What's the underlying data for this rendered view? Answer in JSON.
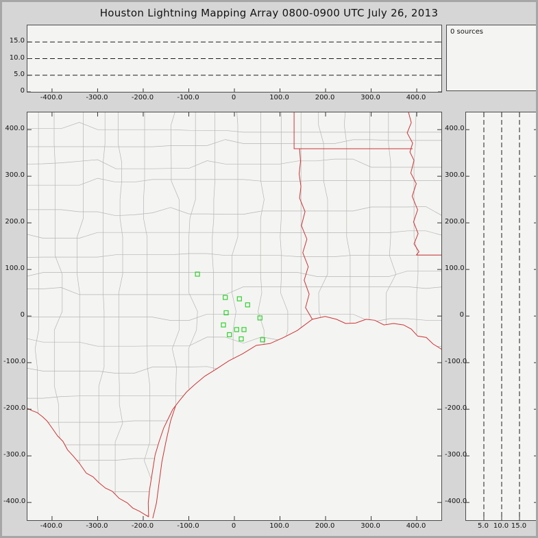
{
  "title": "Houston Lightning Mapping Array   0800-0900 UTC  July 26, 2013",
  "counts_label": "0 sources",
  "sources_count": 0,
  "colors": {
    "state_border": "#cc3333",
    "county_border": "#b5b5b5",
    "station": "#2fd12f",
    "grid_dash": "#1a1a1a",
    "panel_bg": "#f4f4f2",
    "window_bg": "#d6d6d6"
  },
  "axes": {
    "ew": [
      {
        "v": -400,
        "label": "-400.0"
      },
      {
        "v": -300,
        "label": "-300.0"
      },
      {
        "v": -200,
        "label": "-200.0"
      },
      {
        "v": -100,
        "label": "-100.0"
      },
      {
        "v": 0,
        "label": "0"
      },
      {
        "v": 100,
        "label": "100.0"
      },
      {
        "v": 200,
        "label": "200.0"
      },
      {
        "v": 300,
        "label": "300.0"
      },
      {
        "v": 400,
        "label": "400.0"
      }
    ],
    "ns": [
      {
        "v": 400,
        "label": "400.0"
      },
      {
        "v": 300,
        "label": "300.0"
      },
      {
        "v": 200,
        "label": "200.0"
      },
      {
        "v": 100,
        "label": "100.0"
      },
      {
        "v": 0,
        "label": "0"
      },
      {
        "v": -100,
        "label": "-100.0"
      },
      {
        "v": -200,
        "label": "-200.0"
      },
      {
        "v": -300,
        "label": "-300.0"
      },
      {
        "v": -400,
        "label": "-400.0"
      }
    ],
    "alt_left": [
      {
        "v": 15,
        "label": "15.0"
      },
      {
        "v": 10,
        "label": "10.0"
      },
      {
        "v": 5,
        "label": "5.0"
      },
      {
        "v": 0,
        "label": "0"
      }
    ],
    "alt_bottom": [
      {
        "v": 5,
        "label": "5.0"
      },
      {
        "v": 10,
        "label": "10.0"
      },
      {
        "v": 15,
        "label": "15.0"
      }
    ]
  },
  "chart_data": [
    {
      "id": "altitude-vs-east-west",
      "type": "scatter",
      "xlim": [
        -454,
        454
      ],
      "ylim": [
        0,
        20
      ],
      "x_ticks": [
        -400,
        -300,
        -200,
        -100,
        0,
        100,
        200,
        300,
        400
      ],
      "y_ticks": [
        0,
        5,
        10,
        15
      ],
      "gridlines": {
        "y": [
          5,
          10,
          15
        ],
        "style": "dashed"
      },
      "points": [],
      "note": "no lightning sources in this hour"
    },
    {
      "id": "plan-view-map",
      "type": "scatter",
      "xlim": [
        -454,
        454
      ],
      "ylim": [
        -438,
        437
      ],
      "x_ticks": [
        -400,
        -300,
        -200,
        -100,
        0,
        100,
        200,
        300,
        400
      ],
      "y_ticks": [
        400,
        300,
        200,
        100,
        0,
        -100,
        -200,
        -300,
        -400
      ],
      "basemap": "Texas / Louisiana county and state boundaries, Gulf coast",
      "series": [
        {
          "name": "LMA stations",
          "marker": "open-square",
          "color": "#2fd12f",
          "points": [
            [
              -81,
              90
            ],
            [
              -20,
              40
            ],
            [
              11,
              37
            ],
            [
              29,
              24
            ],
            [
              -18,
              7
            ],
            [
              -24,
              -19
            ],
            [
              5,
              -29
            ],
            [
              21,
              -29
            ],
            [
              -11,
              -40
            ],
            [
              15,
              -49
            ],
            [
              56,
              -4
            ],
            [
              62,
              -51
            ]
          ]
        }
      ],
      "source_points": []
    },
    {
      "id": "altitude-vs-north-south",
      "type": "scatter",
      "xlim": [
        0,
        20
      ],
      "ylim": [
        -438,
        437
      ],
      "x_ticks": [
        5,
        10,
        15
      ],
      "y_ticks": [
        400,
        300,
        200,
        100,
        0,
        -100,
        -200,
        -300,
        -400
      ],
      "gridlines": {
        "x": [
          5,
          10,
          15
        ],
        "style": "dashed"
      },
      "points": []
    }
  ],
  "map": {
    "county_grid": {
      "spacing_km": 50,
      "jitter_km": 14,
      "seed": 11
    },
    "coast": [
      [
        454,
        -71
      ],
      [
        436,
        -60
      ],
      [
        421,
        -46
      ],
      [
        402,
        -43
      ],
      [
        388,
        -28
      ],
      [
        371,
        -19
      ],
      [
        349,
        -16
      ],
      [
        328,
        -19
      ],
      [
        308,
        -9
      ],
      [
        289,
        -7
      ],
      [
        266,
        -15
      ],
      [
        244,
        -16
      ],
      [
        224,
        -7
      ],
      [
        199,
        -1
      ],
      [
        171,
        -7
      ],
      [
        138,
        -31
      ],
      [
        108,
        -46
      ],
      [
        78,
        -59
      ],
      [
        48,
        -63
      ],
      [
        18,
        -81
      ],
      [
        -12,
        -96
      ],
      [
        -42,
        -115
      ],
      [
        -65,
        -129
      ],
      [
        -87,
        -147
      ],
      [
        -105,
        -163
      ],
      [
        -120,
        -181
      ],
      [
        -135,
        -200
      ],
      [
        -144,
        -218
      ],
      [
        -155,
        -240
      ],
      [
        -165,
        -269
      ],
      [
        -174,
        -298
      ],
      [
        -180,
        -335
      ],
      [
        -186,
        -372
      ],
      [
        -189,
        -401
      ],
      [
        -188,
        -431
      ]
    ],
    "rio_grande": [
      [
        -188,
        -431
      ],
      [
        -208,
        -419
      ],
      [
        -223,
        -412
      ],
      [
        -235,
        -401
      ],
      [
        -253,
        -391
      ],
      [
        -268,
        -376
      ],
      [
        -283,
        -369
      ],
      [
        -298,
        -357
      ],
      [
        -310,
        -345
      ],
      [
        -325,
        -337
      ],
      [
        -340,
        -316
      ],
      [
        -353,
        -301
      ],
      [
        -366,
        -287
      ],
      [
        -376,
        -269
      ],
      [
        -388,
        -257
      ],
      [
        -400,
        -240
      ],
      [
        -411,
        -225
      ],
      [
        -421,
        -216
      ],
      [
        -433,
        -207
      ],
      [
        -444,
        -203
      ],
      [
        -454,
        -198
      ]
    ],
    "barrier_island": [
      [
        -129,
        -193
      ],
      [
        -140,
        -225
      ],
      [
        -150,
        -269
      ],
      [
        -159,
        -313
      ],
      [
        -165,
        -357
      ],
      [
        -171,
        -401
      ],
      [
        -179,
        -434
      ]
    ],
    "state_lines": [
      [
        [
          131,
          437
        ],
        [
          131,
          359
        ],
        [
          391,
          359
        ]
      ],
      [
        [
          382,
          437
        ],
        [
          388,
          415
        ],
        [
          379,
          393
        ],
        [
          391,
          371
        ],
        [
          385,
          352
        ],
        [
          394,
          334
        ],
        [
          387,
          307
        ],
        [
          399,
          284
        ],
        [
          390,
          257
        ],
        [
          402,
          228
        ],
        [
          393,
          202
        ],
        [
          403,
          177
        ],
        [
          394,
          155
        ],
        [
          405,
          138
        ],
        [
          399,
          131
        ]
      ],
      [
        [
          399,
          131
        ],
        [
          454,
          131
        ]
      ],
      [
        [
          143,
          359
        ],
        [
          145,
          332
        ],
        [
          142,
          305
        ],
        [
          146,
          278
        ],
        [
          143,
          253
        ],
        [
          155,
          224
        ],
        [
          147,
          194
        ],
        [
          159,
          165
        ],
        [
          150,
          136
        ],
        [
          162,
          106
        ],
        [
          153,
          77
        ],
        [
          164,
          47
        ],
        [
          156,
          18
        ],
        [
          171,
          -7
        ]
      ]
    ],
    "stations": [
      [
        -81,
        90
      ],
      [
        -20,
        40
      ],
      [
        11,
        37
      ],
      [
        29,
        24
      ],
      [
        -18,
        7
      ],
      [
        -24,
        -19
      ],
      [
        5,
        -29
      ],
      [
        21,
        -29
      ],
      [
        -11,
        -40
      ],
      [
        15,
        -49
      ],
      [
        56,
        -4
      ],
      [
        62,
        -51
      ]
    ]
  }
}
